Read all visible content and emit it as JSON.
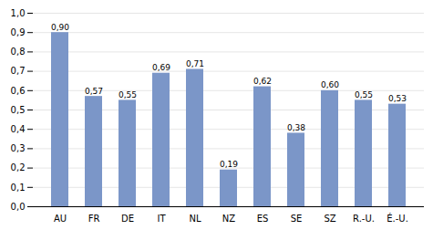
{
  "chart_data": {
    "type": "bar",
    "categories": [
      "AU",
      "FR",
      "DE",
      "IT",
      "NL",
      "NZ",
      "ES",
      "SE",
      "SZ",
      "R.-U.",
      "É.-U."
    ],
    "values": [
      0.9,
      0.57,
      0.55,
      0.69,
      0.71,
      0.19,
      0.62,
      0.38,
      0.6,
      0.55,
      0.53
    ],
    "value_labels": [
      "0,90",
      "0,57",
      "0,55",
      "0,69",
      "0,71",
      "0,19",
      "0,62",
      "0,38",
      "0,60",
      "0,55",
      "0,53"
    ],
    "data_labels": true,
    "color": "#7b96c8",
    "ylim": [
      0.0,
      1.0
    ],
    "yticks": [
      {
        "value": 0.0,
        "label": "0,0"
      },
      {
        "value": 0.1,
        "label": "0,1"
      },
      {
        "value": 0.2,
        "label": "0,2"
      },
      {
        "value": 0.3,
        "label": "0,3"
      },
      {
        "value": 0.4,
        "label": "0,4"
      },
      {
        "value": 0.5,
        "label": "0,5"
      },
      {
        "value": 0.6,
        "label": "0,6"
      },
      {
        "value": 0.7,
        "label": "0,7"
      },
      {
        "value": 0.8,
        "label": "0,8"
      },
      {
        "value": 0.9,
        "label": "0,9"
      },
      {
        "value": 1.0,
        "label": "1,0"
      }
    ],
    "grid": true
  }
}
